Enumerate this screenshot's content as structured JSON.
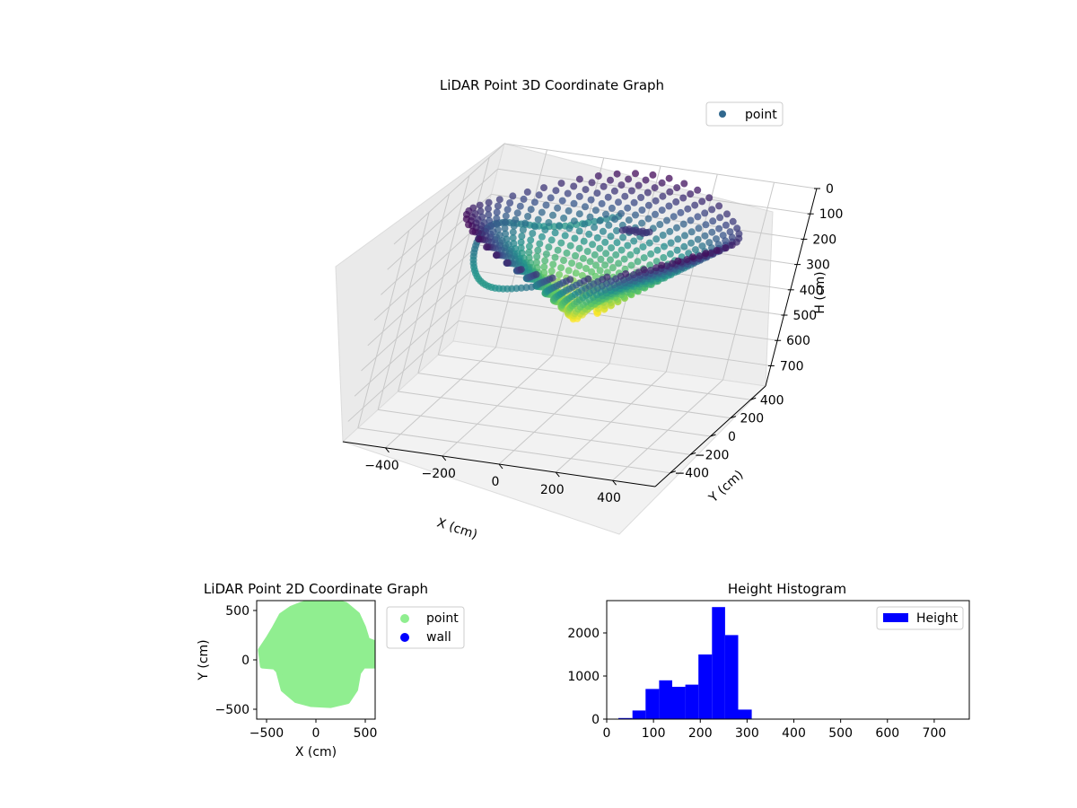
{
  "figure": {
    "background": "#ffffff"
  },
  "chart_data": [
    {
      "type": "scatter",
      "projection": "3d",
      "title": "LiDAR Point 3D Coordinate Graph",
      "xlabel": "X (cm)",
      "ylabel": "Y (cm)",
      "zlabel": "H (cm)",
      "x_ticks": [
        -400,
        -200,
        0,
        200,
        400
      ],
      "y_ticks": [
        -400,
        -200,
        0,
        200,
        400
      ],
      "z_ticks": [
        0,
        100,
        200,
        300,
        400,
        500,
        600,
        700
      ],
      "xlim": [
        -550,
        550
      ],
      "ylim": [
        -550,
        550
      ],
      "zlim": [
        780,
        0
      ],
      "z_inverted": true,
      "colormap": "viridis",
      "legend": {
        "position": "top-right",
        "entries": [
          "point"
        ],
        "marker_color": "#31688e"
      },
      "grid": true,
      "series": [
        {
          "name": "point",
          "description_points": [
            {
              "x": -450,
              "y": 300,
              "h": 40
            },
            {
              "x": 0,
              "y": 500,
              "h": 20
            },
            {
              "x": 450,
              "y": 100,
              "h": 40
            },
            {
              "x": 300,
              "y": -350,
              "h": 120
            },
            {
              "x": -200,
              "y": -400,
              "h": 180
            },
            {
              "x": -400,
              "y": 0,
              "h": 220
            },
            {
              "x": 50,
              "y": 0,
              "h": 280
            },
            {
              "x": 100,
              "y": 100,
              "h": 220
            }
          ]
        }
      ]
    },
    {
      "type": "scatter",
      "title": "LiDAR Point 2D Coordinate Graph",
      "xlabel": "X (cm)",
      "ylabel": "Y (cm)",
      "x_ticks": [
        -500,
        0,
        500
      ],
      "y_ticks": [
        -500,
        0,
        500
      ],
      "xlim": [
        -600,
        600
      ],
      "ylim": [
        -600,
        600
      ],
      "legend": {
        "position": "outside-right",
        "entries": [
          "point",
          "wall"
        ]
      },
      "series": [
        {
          "name": "point",
          "color": "#90ee90",
          "outline": [
            [
              -150,
              560
            ],
            [
              0,
              600
            ],
            [
              150,
              600
            ],
            [
              300,
              560
            ],
            [
              420,
              460
            ],
            [
              480,
              330
            ],
            [
              520,
              200
            ],
            [
              600,
              170
            ],
            [
              600,
              -60
            ],
            [
              480,
              -60
            ],
            [
              430,
              -130
            ],
            [
              400,
              -300
            ],
            [
              320,
              -420
            ],
            [
              150,
              -460
            ],
            [
              -50,
              -450
            ],
            [
              -200,
              -410
            ],
            [
              -330,
              -300
            ],
            [
              -380,
              -110
            ],
            [
              -420,
              -70
            ],
            [
              -540,
              -60
            ],
            [
              -560,
              100
            ],
            [
              -480,
              220
            ],
            [
              -420,
              320
            ],
            [
              -350,
              450
            ],
            [
              -250,
              520
            ]
          ]
        },
        {
          "name": "wall",
          "color": "#0000ff",
          "points": []
        }
      ]
    },
    {
      "type": "bar",
      "subtype": "histogram",
      "title": "Height Histogram",
      "xlabel": "",
      "ylabel": "",
      "x_ticks": [
        0,
        100,
        200,
        300,
        400,
        500,
        600,
        700
      ],
      "y_ticks": [
        0,
        1000,
        2000
      ],
      "xlim": [
        0,
        775
      ],
      "ylim": [
        0,
        2750
      ],
      "legend": {
        "position": "top-right",
        "entries": [
          "Height"
        ]
      },
      "series": [
        {
          "name": "Height",
          "color": "#0000ff",
          "bins": [
            {
              "start": 0,
              "end": 25,
              "value": 5
            },
            {
              "start": 25,
              "end": 55,
              "value": 25
            },
            {
              "start": 55,
              "end": 83,
              "value": 200
            },
            {
              "start": 83,
              "end": 112,
              "value": 700
            },
            {
              "start": 112,
              "end": 140,
              "value": 900
            },
            {
              "start": 140,
              "end": 168,
              "value": 750
            },
            {
              "start": 168,
              "end": 196,
              "value": 800
            },
            {
              "start": 196,
              "end": 225,
              "value": 1500
            },
            {
              "start": 225,
              "end": 253,
              "value": 2600
            },
            {
              "start": 253,
              "end": 281,
              "value": 1950
            },
            {
              "start": 281,
              "end": 310,
              "value": 220
            }
          ]
        }
      ]
    }
  ]
}
